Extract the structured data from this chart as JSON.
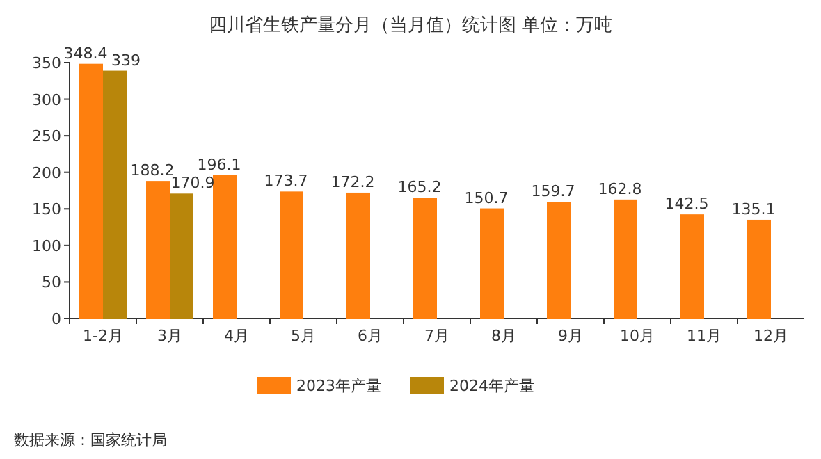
{
  "chart_data": {
    "type": "bar",
    "title": "四川省生铁产量分月（当月值）统计图 单位：万吨",
    "categories": [
      "1-2月",
      "3月",
      "4月",
      "5月",
      "6月",
      "7月",
      "8月",
      "9月",
      "10月",
      "11月",
      "12月"
    ],
    "series": [
      {
        "name": "2023年产量",
        "color": "#fe7f0e",
        "values": [
          348.4,
          188.2,
          196.1,
          173.7,
          172.2,
          165.2,
          150.7,
          159.7,
          162.8,
          142.5,
          135.1
        ]
      },
      {
        "name": "2024年产量",
        "color": "#b8860b",
        "values": [
          339,
          170.9,
          null,
          null,
          null,
          null,
          null,
          null,
          null,
          null,
          null
        ]
      }
    ],
    "ylim": [
      0,
      350
    ],
    "yticks": [
      0,
      50,
      100,
      150,
      200,
      250,
      300,
      350
    ],
    "data_labels": true,
    "legend": "bottom",
    "annotations": [
      "数据来源：国家统计局"
    ]
  }
}
